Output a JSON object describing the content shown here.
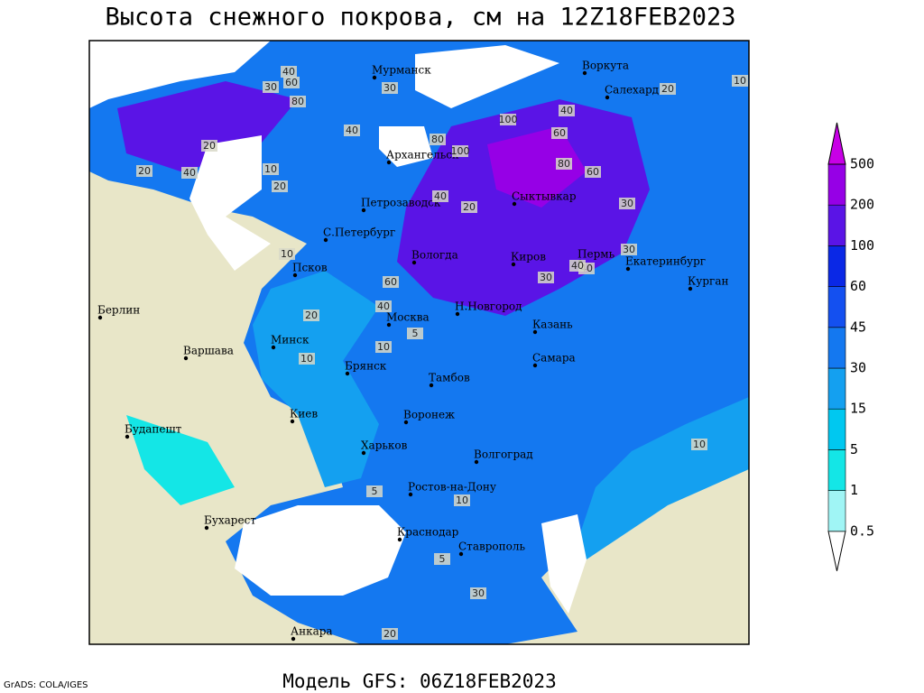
{
  "header": {
    "title": "Высота снежного покрова, см на 12Z18FEB2023"
  },
  "footer": {
    "model": "Модель GFS: 06Z18FEB2023",
    "credit": "GrADS: COLA/IGES"
  },
  "legend": {
    "levels": [
      0.5,
      1,
      5,
      15,
      30,
      45,
      60,
      100,
      200,
      500
    ],
    "colors": [
      "#ffffff",
      "#a0f5f5",
      "#14e6e6",
      "#00c8f0",
      "#14a0f0",
      "#1478f0",
      "#1450f0",
      "#0a28e6",
      "#5a14e6",
      "#9600e6",
      "#c800e6"
    ]
  },
  "cities": [
    "Мурманск",
    "Воркута",
    "Салехард",
    "Архангельск",
    "Сыктывкар",
    "Петрозаводск",
    "С.Петербург",
    "Вологда",
    "Киров",
    "Пермь",
    "Екатеринбург",
    "Курган",
    "Псков",
    "Берлин",
    "Н.Новгород",
    "Москва",
    "Казань",
    "Минск",
    "Варшава",
    "Брянск",
    "Самара",
    "Тамбов",
    "Киев",
    "Воронеж",
    "Будапешт",
    "Харьков",
    "Волгоград",
    "Ростов-на-Дону",
    "Бухарест",
    "Краснодар",
    "Ставрополь",
    "Анкара"
  ],
  "contour_labels": [
    "40",
    "30",
    "60",
    "80",
    "40",
    "20",
    "10",
    "20",
    "40",
    "30",
    "80",
    "100",
    "60",
    "100",
    "40",
    "80",
    "60",
    "30",
    "40",
    "20",
    "10",
    "60",
    "40",
    "40",
    "30",
    "40",
    "20",
    "10",
    "20",
    "30",
    "20",
    "10",
    "10",
    "5",
    "10",
    "5",
    "30",
    "10",
    "5",
    "20"
  ]
}
